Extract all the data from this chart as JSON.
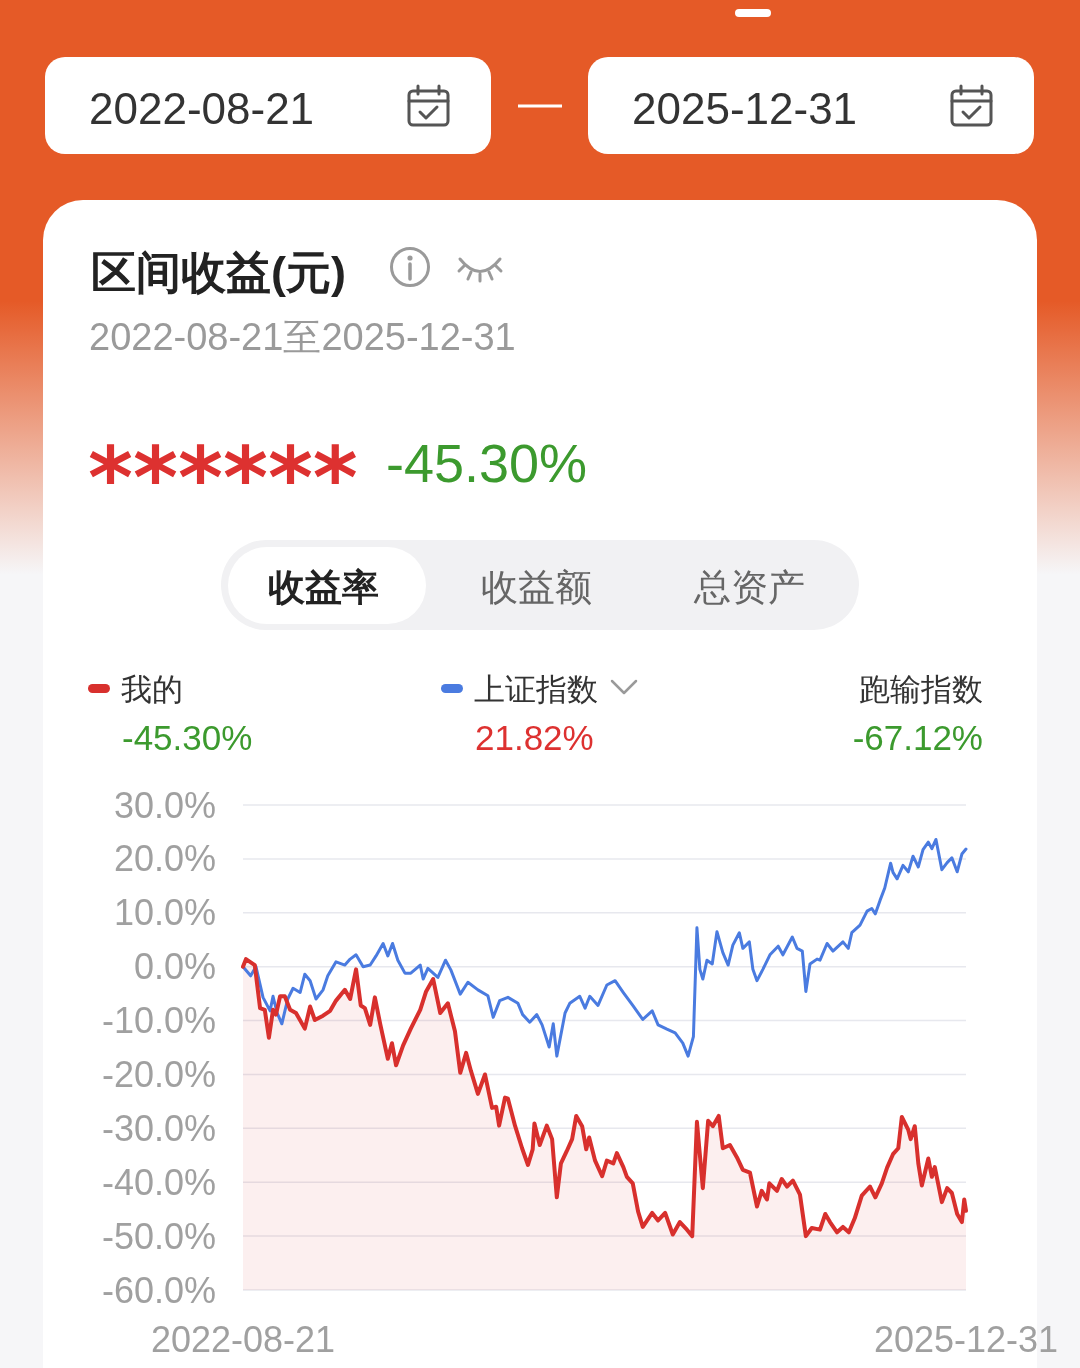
{
  "chart_data": {
    "type": "line",
    "title": "区间收益(元)",
    "subtitle": "2022-08-21至2025-12-31",
    "annotations": [
      "2022-08-21",
      "2025-12-31",
      "******",
      "-45.30%",
      "收益率",
      "收益额",
      "总资产",
      "-45.30%",
      "21.82%",
      "跑输指数",
      "-67.12%"
    ],
    "xlim": [
      "2022-08-21",
      "2025-12-31"
    ],
    "xticks": [
      {
        "value": "2022-08-21",
        "label": "2022-08-21"
      },
      {
        "value": "2025-12-31",
        "label": "2025-12-31"
      }
    ],
    "ylim": [
      -60,
      30
    ],
    "yticks": [
      {
        "value": -60,
        "label": "-60.0%"
      },
      {
        "value": -50,
        "label": "-50.0%"
      },
      {
        "value": -40,
        "label": "-40.0%"
      },
      {
        "value": -30,
        "label": "-30.0%"
      },
      {
        "value": -20,
        "label": "-20.0%"
      },
      {
        "value": -10,
        "label": "-10.0%"
      },
      {
        "value": 0,
        "label": "0.0%"
      },
      {
        "value": 10,
        "label": "10.0%"
      },
      {
        "value": 20,
        "label": "20.0%"
      },
      {
        "value": 30,
        "label": "30.0%"
      }
    ],
    "grid": "y",
    "legend": "top",
    "series": [
      {
        "name": "我的",
        "color": "#d8302d",
        "x": [
          "2022-08-21",
          "2022-08-26",
          "2022-09-10",
          "2022-09-19",
          "2022-09-27",
          "2022-10-04",
          "2022-10-11",
          "2022-10-16",
          "2022-10-23",
          "2022-10-31",
          "2022-11-09",
          "2022-11-19",
          "2022-12-04",
          "2022-12-13",
          "2022-12-21",
          "2023-01-04",
          "2023-01-16",
          "2023-01-26",
          "2023-02-10",
          "2023-02-19",
          "2023-03-01",
          "2023-03-09",
          "2023-03-16",
          "2023-03-25",
          "2023-04-02",
          "2023-04-11",
          "2023-04-24",
          "2023-05-01",
          "2023-05-08",
          "2023-05-20",
          "2023-06-02",
          "2023-06-18",
          "2023-06-28",
          "2023-07-10",
          "2023-07-22",
          "2023-08-04",
          "2023-08-16",
          "2023-08-25",
          "2023-09-04",
          "2023-09-12",
          "2023-09-24",
          "2023-10-06",
          "2023-10-18",
          "2023-10-25",
          "2023-10-30",
          "2023-11-09",
          "2023-11-14",
          "2023-11-26",
          "2023-12-08",
          "2023-12-18",
          "2023-12-26",
          "2023-12-29",
          "2024-01-07",
          "2024-01-19",
          "2024-01-28",
          "2024-02-05",
          "2024-02-12",
          "2024-02-22",
          "2024-03-02",
          "2024-03-09",
          "2024-03-19",
          "2024-03-26",
          "2024-03-31",
          "2024-04-10",
          "2024-04-22",
          "2024-04-30",
          "2024-05-11",
          "2024-05-17",
          "2024-05-28",
          "2024-06-03",
          "2024-06-13",
          "2024-06-22",
          "2024-06-30",
          "2024-07-16",
          "2024-07-26",
          "2024-08-07",
          "2024-08-20",
          "2024-09-01",
          "2024-09-13",
          "2024-09-22",
          "2024-09-30",
          "2024-10-10",
          "2024-10-19",
          "2024-10-27",
          "2024-11-06",
          "2024-11-13",
          "2024-11-25",
          "2024-12-07",
          "2024-12-17",
          "2024-12-29",
          "2025-01-10",
          "2025-01-18",
          "2025-01-27",
          "2025-01-31",
          "2025-02-13",
          "2025-02-21",
          "2025-03-02",
          "2025-03-12",
          "2025-03-24",
          "2025-04-03",
          "2025-04-13",
          "2025-04-27",
          "2025-05-06",
          "2025-05-14",
          "2025-05-26",
          "2025-06-05",
          "2025-06-15",
          "2025-06-25",
          "2025-07-07",
          "2025-07-21",
          "2025-07-30",
          "2025-08-10",
          "2025-08-19",
          "2025-08-29",
          "2025-09-07",
          "2025-09-13",
          "2025-09-24",
          "2025-09-28",
          "2025-10-05",
          "2025-10-11",
          "2025-10-17",
          "2025-10-28",
          "2025-11-03",
          "2025-11-08",
          "2025-11-20",
          "2025-11-29",
          "2025-12-07",
          "2025-12-16",
          "2025-12-24",
          "2025-12-28",
          "2025-12-31"
        ],
        "values": [
          0,
          1.4,
          0.3,
          -7.7,
          -8,
          -13.2,
          -8,
          -8.9,
          -5.5,
          -5.5,
          -8,
          -8.6,
          -11.5,
          -7.4,
          -9.9,
          -9.1,
          -8.2,
          -6.3,
          -4.3,
          -6,
          -0.5,
          -7.2,
          -7.7,
          -10.8,
          -5.7,
          -10.6,
          -17.1,
          -14.2,
          -18.3,
          -14.6,
          -11.5,
          -8,
          -4.6,
          -2.3,
          -8.6,
          -6.8,
          -12,
          -19.7,
          -16,
          -19.3,
          -23.6,
          -20,
          -26.2,
          -26,
          -29.5,
          -24.3,
          -24.5,
          -29.5,
          -33.7,
          -36.8,
          -33.9,
          -29.1,
          -33.1,
          -29.5,
          -32,
          -42.8,
          -36.5,
          -34.2,
          -32,
          -27.7,
          -29.6,
          -33.9,
          -31.7,
          -36,
          -38.9,
          -36,
          -36.5,
          -34.6,
          -37.2,
          -39,
          -40.2,
          -45.4,
          -48.3,
          -45.7,
          -47.1,
          -45.7,
          -49.7,
          -47.4,
          -48.8,
          -50,
          -28.8,
          -41.1,
          -28.6,
          -29.6,
          -27.7,
          -33.7,
          -33.1,
          -35.4,
          -37.7,
          -38.2,
          -44.5,
          -41.6,
          -43.2,
          -40.2,
          -41.6,
          -39.4,
          -40.8,
          -39.7,
          -42.3,
          -50,
          -48.5,
          -48.8,
          -45.9,
          -47.4,
          -49.3,
          -48.3,
          -49.3,
          -46.7,
          -42.5,
          -40.8,
          -42.8,
          -40.2,
          -37.3,
          -34.8,
          -33.7,
          -27.9,
          -30.3,
          -32,
          -29.6,
          -36.5,
          -40.6,
          -35.6,
          -39,
          -37.2,
          -43.7,
          -41.1,
          -42,
          -45.9,
          -47.4,
          -43.2,
          -45.3
        ],
        "upper": [
          0,
          1.4,
          0.3,
          -7.7,
          -8,
          -13.2,
          -8,
          -8.9,
          -5.5,
          -5.5,
          -8,
          -8.6,
          -11.5,
          -7.4,
          -9.9,
          -9.1,
          -8.2,
          -6.3,
          -4.3,
          -6,
          -0.5,
          -7.2,
          -7.7,
          -10.8,
          -5.7,
          -10.6,
          -17.1,
          -14.2,
          -18.3,
          -14.6,
          -11.5,
          -8,
          -4.6,
          -2.3,
          -8.6,
          -6.8,
          -12,
          -19.7,
          -16,
          -19.3,
          -23.6,
          -20,
          -26.2,
          -26,
          -29.5,
          -24.3,
          -24.5,
          -29.5,
          -33.7,
          -36.8,
          -33.9,
          -29.1,
          -33.1,
          -29.5,
          -32,
          -42.8,
          -36.5,
          -34.2,
          -32,
          -27.7,
          -29.6,
          -33.9,
          -31.7,
          -36,
          -38.9,
          -36,
          -36.5,
          -34.6,
          -37.2,
          -39,
          -40.2,
          -45.4,
          -48.3,
          -45.7,
          -47.1,
          -45.7,
          -49.7,
          -47.4,
          -48.8,
          -50,
          -28.8,
          -41.1,
          -28.6,
          -29.6,
          -27.7,
          -33.7,
          -33.1,
          -35.4,
          -37.7,
          -38.2,
          -44.5,
          -41.6,
          -43.2,
          -40.2,
          -41.6,
          -39.4,
          -40.8,
          -39.7,
          -42.3,
          -50,
          -48.5,
          -48.8,
          -45.9,
          -47.4,
          -49.3,
          -48.3,
          -49.3,
          -46.7,
          -42.5,
          -40.8,
          -42.8,
          -40.2,
          -37.3,
          -34.8,
          -33.7,
          -27.9,
          -30.3,
          -32,
          -29.6,
          -36.5,
          -40.6,
          -35.6,
          -39,
          -37.2,
          -43.7,
          -41.1,
          -42,
          -45.9,
          -47.4,
          -43.2,
          -45.3
        ],
        "lower": [
          -60,
          -60,
          -60,
          -60,
          -60,
          -60,
          -60,
          -60,
          -60,
          -60,
          -60,
          -60,
          -60,
          -60,
          -60,
          -60,
          -60,
          -60,
          -60,
          -60,
          -60,
          -60,
          -60,
          -60,
          -60,
          -60,
          -60,
          -60,
          -60,
          -60,
          -60,
          -60,
          -60,
          -60,
          -60,
          -60,
          -60,
          -60,
          -60,
          -60,
          -60,
          -60,
          -60,
          -60,
          -60,
          -60,
          -60,
          -60,
          -60,
          -60,
          -60,
          -60,
          -60,
          -60,
          -60,
          -60,
          -60,
          -60,
          -60,
          -60,
          -60,
          -60,
          -60,
          -60,
          -60,
          -60,
          -60,
          -60,
          -60,
          -60,
          -60,
          -60,
          -60,
          -60,
          -60,
          -60,
          -60,
          -60,
          -60,
          -60,
          -60,
          -60,
          -60,
          -60,
          -60,
          -60,
          -60,
          -60,
          -60,
          -60,
          -60,
          -60,
          -60,
          -60,
          -60,
          -60,
          -60,
          -60,
          -60,
          -60,
          -60,
          -60,
          -60,
          -60,
          -60,
          -60,
          -60,
          -60,
          -60,
          -60,
          -60,
          -60,
          -60,
          -60,
          -60,
          -60,
          -60,
          -60,
          -60,
          -60,
          -60,
          -60,
          -60,
          -60,
          -60,
          -60,
          -60,
          -60,
          -60,
          -60,
          -60
        ]
      },
      {
        "name": "上证指数",
        "color": "#4a7be0",
        "x": [
          "2022-08-21",
          "2022-09-03",
          "2022-09-12",
          "2022-09-24",
          "2022-10-06",
          "2022-10-11",
          "2022-10-18",
          "2022-10-26",
          "2022-11-05",
          "2022-11-14",
          "2022-11-26",
          "2022-12-04",
          "2022-12-13",
          "2022-12-23",
          "2023-01-04",
          "2023-01-12",
          "2023-01-26",
          "2023-02-10",
          "2023-02-19",
          "2023-03-01",
          "2023-03-13",
          "2023-03-25",
          "2023-04-04",
          "2023-04-16",
          "2023-04-24",
          "2023-05-02",
          "2023-05-11",
          "2023-05-23",
          "2023-06-02",
          "2023-06-18",
          "2023-06-23",
          "2023-07-01",
          "2023-07-18",
          "2023-07-31",
          "2023-08-09",
          "2023-08-25",
          "2023-09-07",
          "2023-09-24",
          "2023-10-11",
          "2023-10-20",
          "2023-10-31",
          "2023-11-14",
          "2023-12-01",
          "2023-12-09",
          "2023-12-21",
          "2024-01-02",
          "2024-01-11",
          "2024-01-23",
          "2024-01-30",
          "2024-02-05",
          "2024-02-19",
          "2024-02-27",
          "2024-03-15",
          "2024-03-24",
          "2024-04-01",
          "2024-04-15",
          "2024-04-30",
          "2024-05-14",
          "2024-05-28",
          "2024-06-13",
          "2024-06-30",
          "2024-07-16",
          "2024-07-26",
          "2024-08-10",
          "2024-08-24",
          "2024-09-06",
          "2024-09-15",
          "2024-09-24",
          "2024-09-30",
          "2024-10-05",
          "2024-10-10",
          "2024-10-17",
          "2024-10-26",
          "2024-11-03",
          "2024-11-13",
          "2024-11-22",
          "2024-11-30",
          "2024-12-11",
          "2024-12-17",
          "2024-12-28",
          "2025-01-03",
          "2025-01-10",
          "2025-01-20",
          "2025-02-01",
          "2025-02-15",
          "2025-02-23",
          "2025-03-11",
          "2025-03-19",
          "2025-03-28",
          "2025-04-03",
          "2025-04-10",
          "2025-04-22",
          "2025-04-27",
          "2025-05-09",
          "2025-05-19",
          "2025-06-05",
          "2025-06-14",
          "2025-06-20",
          "2025-07-04",
          "2025-07-16",
          "2025-07-24",
          "2025-07-30",
          "2025-08-07",
          "2025-08-15",
          "2025-08-25",
          "2025-08-29",
          "2025-09-05",
          "2025-09-15",
          "2025-09-24",
          "2025-10-02",
          "2025-10-11",
          "2025-10-19",
          "2025-10-28",
          "2025-11-03",
          "2025-11-10",
          "2025-11-20",
          "2025-11-29",
          "2025-12-07",
          "2025-12-16",
          "2025-12-24",
          "2025-12-31"
        ],
        "values": [
          0,
          -1.7,
          0,
          -5.7,
          -8.2,
          -5.5,
          -8.6,
          -10.6,
          -6,
          -4,
          -4.8,
          -1.4,
          -2.6,
          -6,
          -4.3,
          -1.7,
          0.9,
          0.3,
          1.4,
          2.2,
          0,
          0.3,
          2,
          4.3,
          2,
          4.3,
          1.2,
          -1.2,
          -1.2,
          0.3,
          -2.3,
          -0.3,
          -2,
          1.2,
          -0.6,
          -5.1,
          -2.9,
          -4.3,
          -5.4,
          -9.4,
          -6.3,
          -5.7,
          -6.8,
          -8.9,
          -10.3,
          -8.9,
          -10.8,
          -14.9,
          -10.6,
          -16.6,
          -8.6,
          -6.8,
          -5.5,
          -7.7,
          -5.5,
          -7.2,
          -3.4,
          -2.6,
          -4.8,
          -7.2,
          -9.8,
          -8.2,
          -10.8,
          -11.6,
          -12.3,
          -14.2,
          -16.6,
          -13,
          7.2,
          -0.5,
          -2.3,
          1.2,
          0.5,
          6.5,
          2.6,
          0.3,
          4,
          6.3,
          3.4,
          4.6,
          -0.5,
          -2.6,
          -0.5,
          2.2,
          3.8,
          2.2,
          5.5,
          3.4,
          2.9,
          -4.6,
          0.5,
          1.4,
          1.2,
          4.3,
          2.9,
          4.6,
          3.4,
          6.3,
          7.7,
          10.3,
          10.8,
          9.8,
          12.3,
          14.6,
          19.2,
          17.5,
          16.3,
          18.8,
          17.6,
          20.5,
          18.5,
          21.7,
          23.1,
          21.9,
          23.6,
          18,
          19.3,
          20.2,
          17.6,
          20.9,
          21.82
        ]
      }
    ]
  }
}
